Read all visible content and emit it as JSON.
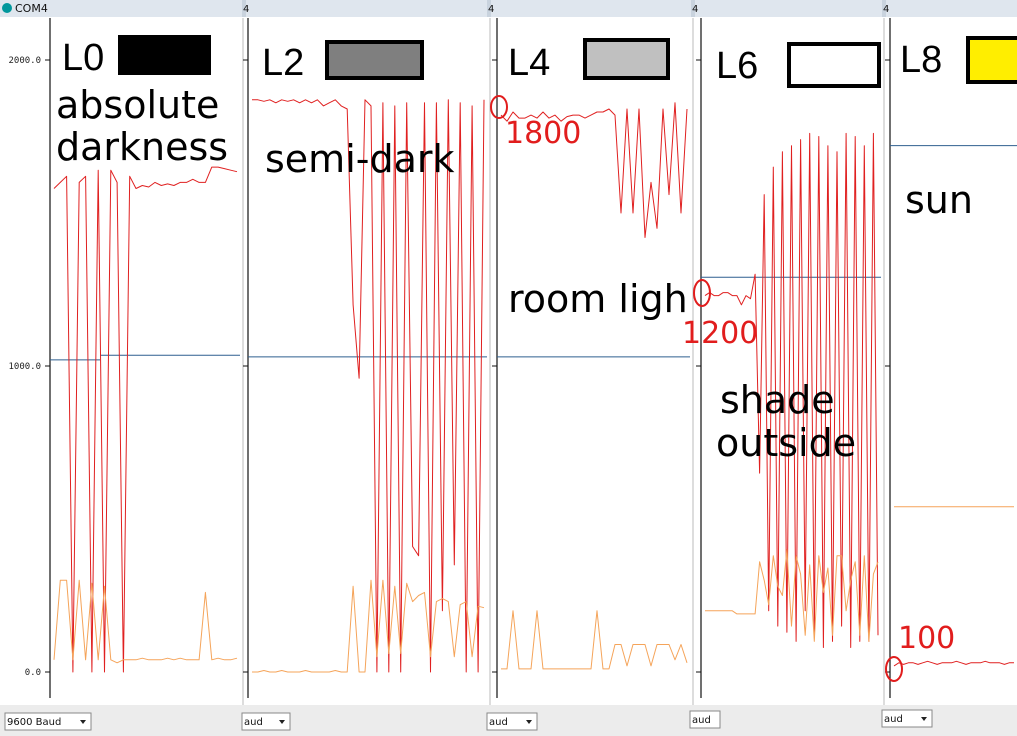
{
  "window": {
    "title": "COM4",
    "baud_label": "9600 Baud",
    "baud_short": "aud"
  },
  "colors": {
    "red_series": "#e02020",
    "orange_series": "#f5a45a",
    "blue_ref": "#2f5f8f",
    "anno": "#e11d1d",
    "swatch_yellow": "#ffee00"
  },
  "panels": [
    {
      "level": "L0",
      "swatch": "#000000",
      "desc_lines": [
        "absolute",
        "darkness"
      ]
    },
    {
      "level": "L2",
      "swatch": "#7f7f7f",
      "desc_lines": [
        "semi-dark"
      ]
    },
    {
      "level": "L4",
      "swatch": "#c0c0c0",
      "desc_lines": [
        "room ligh"
      ]
    },
    {
      "level": "L6",
      "swatch": "#ffffff",
      "desc_lines": [
        "shade",
        "outside"
      ]
    },
    {
      "level": "L8",
      "swatch": "#ffee00",
      "desc_lines": [
        "sun"
      ]
    }
  ],
  "annotations": [
    {
      "panel": 2,
      "text": "1800"
    },
    {
      "panel": 3,
      "text": "1200"
    },
    {
      "panel": 4,
      "text": "100"
    }
  ],
  "tab_digit": "4",
  "chart_data": {
    "type": "line",
    "title": "",
    "xlabel": "",
    "ylabel": "",
    "ylim": [
      0,
      2000
    ],
    "yticks": [
      0,
      1000,
      2000
    ],
    "ytick_labels": [
      "0.0",
      "1000.0",
      "2000.0"
    ],
    "grid": false,
    "legend": "none",
    "panels": [
      {
        "level": "L0",
        "reference_level": 1030,
        "series": [
          {
            "values": [
              1580,
              1600,
              1620,
              0,
              1600,
              1620,
              0,
              1640,
              0,
              1640,
              1600,
              0,
              1620,
              1580,
              1590,
              1585,
              1600,
              1590,
              1595,
              1590,
              1600,
              1600,
              1610,
              1600,
              1600,
              1650,
              1650,
              1645,
              1640,
              1635
            ]
          },
          {
            "values": [
              40,
              300,
              300,
              40,
              300,
              40,
              290,
              40,
              280,
              40,
              30,
              40,
              40,
              40,
              45,
              40,
              40,
              40,
              45,
              40,
              45,
              40,
              40,
              40,
              260,
              40,
              45,
              40,
              40,
              45
            ]
          }
        ]
      },
      {
        "level": "L2",
        "reference_level": 1030,
        "series": [
          {
            "values": [
              1870,
              1870,
              1865,
              1870,
              1860,
              1870,
              1865,
              1870,
              1860,
              1870,
              1860,
              1870,
              1850,
              1860,
              1870,
              1850,
              1840,
              1200,
              960,
              1870,
              1850,
              0,
              1860,
              0,
              1850,
              0,
              1860,
              410,
              380,
              1860,
              0,
              1860,
              200,
              1870,
              350,
              1860,
              0,
              1850,
              0,
              1870
            ]
          },
          {
            "values": [
              0,
              0,
              5,
              0,
              0,
              5,
              0,
              0,
              0,
              5,
              0,
              0,
              0,
              0,
              5,
              0,
              0,
              280,
              0,
              0,
              300,
              50,
              300,
              60,
              280,
              60,
              290,
              230,
              250,
              260,
              50,
              230,
              240,
              230,
              50,
              220,
              230,
              50,
              215,
              210
            ]
          }
        ]
      },
      {
        "level": "L4",
        "reference_level": 1030,
        "series": [
          {
            "values": [
              1820,
              1800,
              1830,
              1810,
              1810,
              1820,
              1810,
              1830,
              1810,
              1820,
              1800,
              1815,
              1820,
              1820,
              1810,
              1820,
              1830,
              1830,
              1840,
              1820,
              1500,
              1840,
              1500,
              1840,
              1420,
              1600,
              1450,
              1840,
              1560,
              1860,
              1500,
              1840
            ]
          },
          {
            "values": [
              10,
              10,
              200,
              10,
              10,
              10,
              200,
              10,
              10,
              10,
              10,
              10,
              10,
              10,
              10,
              10,
              200,
              10,
              10,
              90,
              90,
              20,
              90,
              90,
              90,
              20,
              90,
              90,
              90,
              40,
              90,
              30
            ]
          }
        ]
      },
      {
        "level": "L6",
        "reference_level": 1290,
        "series": [
          {
            "values": [
              1230,
              1240,
              1230,
              1230,
              1240,
              1240,
              1230,
              1230,
              1200,
              1230,
              1220,
              1300,
              650,
              1560,
              200,
              1650,
              150,
              1700,
              130,
              1720,
              100,
              1740,
              200,
              1760,
              120,
              1750,
              80,
              1720,
              100,
              1700,
              150,
              1760,
              80,
              1750,
              100,
              1720,
              100,
              1760,
              120
            ]
          },
          {
            "values": [
              200,
              200,
              200,
              200,
              200,
              200,
              200,
              190,
              190,
              190,
              190,
              190,
              360,
              300,
              220,
              380,
              280,
              250,
              400,
              150,
              380,
              320,
              120,
              350,
              100,
              380,
              260,
              340,
              120,
              380,
              380,
              200,
              300,
              360,
              120,
              380,
              100,
              320,
              360
            ]
          }
        ]
      },
      {
        "level": "L8",
        "reference_level": 1720,
        "series": [
          {
            "values": [
              20,
              30,
              25,
              30,
              30,
              25,
              30,
              35,
              30,
              25,
              30,
              30,
              30,
              35,
              30,
              25,
              30,
              30,
              30,
              35,
              30,
              30,
              30,
              25,
              30,
              30
            ]
          },
          {
            "values": [
              540,
              540,
              540,
              540,
              540,
              540,
              540,
              540,
              540,
              540,
              540,
              540,
              540,
              540,
              540,
              540,
              540,
              540,
              540,
              540,
              540,
              540,
              540,
              540,
              540,
              540
            ]
          }
        ]
      }
    ]
  }
}
